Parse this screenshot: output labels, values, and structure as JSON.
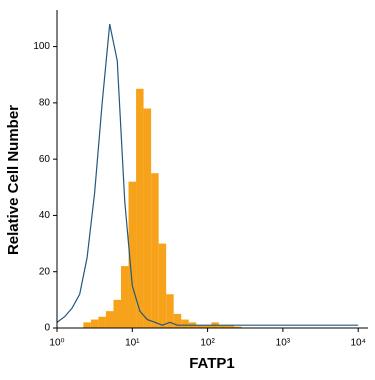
{
  "chart_data": {
    "type": "histogram-overlay",
    "x_label": "FATP1",
    "y_label": "Relative Cell Number",
    "log_x": true,
    "x": [
      1,
      1.26,
      1.58,
      2,
      2.51,
      3.16,
      3.98,
      5.01,
      6.31,
      7.94,
      10,
      12.6,
      15.8,
      20,
      25.1,
      31.6,
      39.8,
      50.1,
      63.1,
      79.4,
      100,
      126,
      158,
      200,
      251,
      316,
      398,
      501,
      631,
      794,
      1000,
      1260,
      1580,
      2000,
      2510,
      3160,
      3980,
      5010,
      6310,
      7940,
      10000
    ],
    "series": [
      {
        "color": "#f7a21b",
        "style": "filled",
        "values": [
          0,
          0,
          0,
          0,
          2,
          3,
          4,
          6,
          10,
          22,
          52,
          85,
          78,
          55,
          30,
          12,
          5,
          3,
          2,
          1,
          1,
          2,
          1,
          1,
          0.5,
          0,
          0,
          0,
          0,
          0,
          0,
          0,
          0,
          0,
          0,
          0,
          0,
          0,
          0,
          0,
          0
        ]
      },
      {
        "color": "#24577e",
        "style": "line",
        "values": [
          2,
          4,
          7,
          12,
          25,
          48,
          80,
          108,
          95,
          45,
          15,
          6,
          3,
          2,
          1,
          2,
          1,
          1,
          1,
          1,
          1,
          1,
          1,
          1,
          1,
          1,
          1,
          1,
          1,
          1,
          1,
          1,
          1,
          1,
          1,
          1,
          1,
          1,
          1,
          1,
          1
        ]
      }
    ],
    "xlim": [
      1,
      13500
    ],
    "ylim": [
      0,
      113
    ],
    "xticks": [
      {
        "value": 1,
        "label": "10⁰"
      },
      {
        "value": 10,
        "label": "10¹"
      },
      {
        "value": 100,
        "label": "10²"
      },
      {
        "value": 1000,
        "label": "10³"
      },
      {
        "value": 10000,
        "label": "10⁴"
      }
    ],
    "yticks": [
      0,
      20,
      40,
      60,
      80,
      100
    ]
  }
}
